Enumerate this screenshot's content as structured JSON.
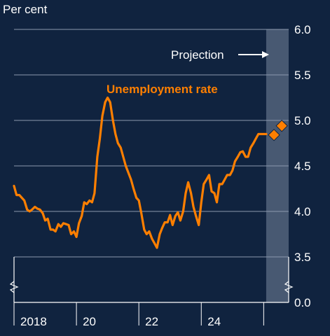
{
  "chart_data": {
    "type": "line",
    "ylabel": "Per cent",
    "ylim": [
      3.5,
      6.0
    ],
    "y_ticks": [
      "6.0",
      "5.5",
      "5.0",
      "4.5",
      "4.0",
      "3.5",
      "0.0"
    ],
    "x_ticks": [
      "2018",
      "20",
      "22",
      "24"
    ],
    "xlim": [
      2017.0,
      2025.8
    ],
    "axis_break": {
      "from": 0.0,
      "to": 3.5
    },
    "grid": true,
    "projection": {
      "label": "Projection",
      "start": 2025.08,
      "end": 2025.8
    },
    "series": [
      {
        "name": "Unemployment rate",
        "color": "#ff7f00",
        "x": [
          2017.0,
          2017.08,
          2017.17,
          2017.25,
          2017.33,
          2017.42,
          2017.5,
          2017.58,
          2017.67,
          2017.75,
          2017.83,
          2017.92,
          2018.0,
          2018.08,
          2018.17,
          2018.25,
          2018.33,
          2018.42,
          2018.5,
          2018.58,
          2018.67,
          2018.75,
          2018.83,
          2018.92,
          2019.0,
          2019.08,
          2019.17,
          2019.25,
          2019.33,
          2019.42,
          2019.5,
          2019.58,
          2019.67,
          2019.75,
          2019.83,
          2019.92,
          2020.0,
          2020.08,
          2020.17,
          2020.25,
          2020.33,
          2020.42,
          2020.5,
          2020.58,
          2020.67,
          2020.75,
          2020.83,
          2020.92,
          2021.0,
          2021.08,
          2021.17,
          2021.25,
          2021.33,
          2021.42,
          2021.5,
          2021.58,
          2021.67,
          2021.75,
          2021.83,
          2021.92,
          2022.0,
          2022.08,
          2022.17,
          2022.25,
          2022.33,
          2022.42,
          2022.5,
          2022.58,
          2022.67,
          2022.75,
          2022.83,
          2022.92,
          2023.0,
          2023.08,
          2023.17,
          2023.25,
          2023.33,
          2023.42,
          2023.5,
          2023.58,
          2023.67,
          2023.75,
          2023.83,
          2023.92,
          2024.0,
          2024.08,
          2024.17,
          2024.25,
          2024.33,
          2024.42,
          2024.5,
          2024.58,
          2024.67,
          2024.75,
          2024.83,
          2024.92,
          2025.0,
          2025.08
        ],
        "values": [
          4.28,
          4.18,
          4.18,
          4.15,
          4.12,
          4.02,
          4.0,
          4.02,
          4.05,
          4.03,
          4.02,
          3.98,
          3.9,
          3.92,
          3.8,
          3.8,
          3.78,
          3.86,
          3.83,
          3.87,
          3.86,
          3.85,
          3.75,
          3.78,
          3.72,
          3.87,
          3.95,
          4.1,
          4.08,
          4.12,
          4.1,
          4.2,
          4.6,
          4.8,
          5.05,
          5.2,
          5.25,
          5.2,
          5.0,
          4.85,
          4.75,
          4.7,
          4.6,
          4.5,
          4.42,
          4.35,
          4.25,
          4.15,
          4.12,
          3.98,
          3.8,
          3.75,
          3.78,
          3.7,
          3.65,
          3.6,
          3.75,
          3.82,
          3.88,
          3.88,
          3.96,
          3.85,
          3.95,
          3.99,
          3.9,
          4.0,
          4.2,
          4.32,
          4.2,
          4.05,
          3.95,
          3.85,
          4.1,
          4.3,
          4.35,
          4.4,
          4.22,
          4.2,
          4.1,
          4.3,
          4.3,
          4.35,
          4.4,
          4.4,
          4.45,
          4.55,
          4.6,
          4.65,
          4.66,
          4.6,
          4.6,
          4.7,
          4.75,
          4.8,
          4.85,
          4.85,
          4.85,
          4.85
        ]
      }
    ],
    "projection_points": {
      "x": [
        2025.33,
        2025.58
      ],
      "values": [
        4.84,
        4.94
      ],
      "color": "#ff7f00"
    }
  }
}
